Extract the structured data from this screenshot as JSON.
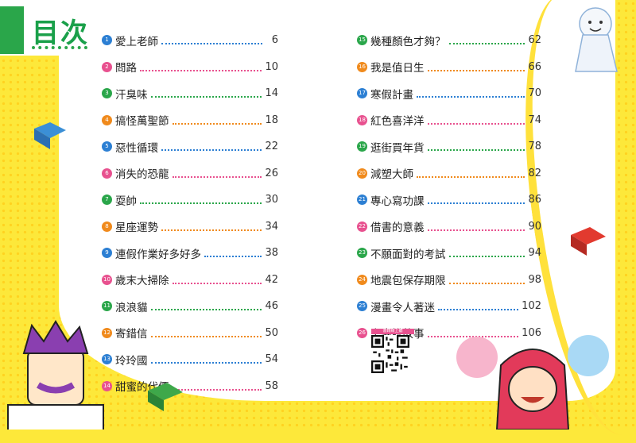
{
  "header": {
    "title": "目次"
  },
  "colors": {
    "title_green": "#1aa04a",
    "background_yellow": "#fde83a"
  },
  "qr_caption": "書籍線上聽",
  "toc": [
    {
      "n": "1",
      "title": "愛上老師",
      "page": "6",
      "color": "#2c7fd3"
    },
    {
      "n": "2",
      "title": "問路",
      "page": "10",
      "color": "#e8518f"
    },
    {
      "n": "3",
      "title": "汗臭味",
      "page": "14",
      "color": "#2aa64a"
    },
    {
      "n": "4",
      "title": "搞怪萬聖節",
      "page": "18",
      "color": "#f08a1c"
    },
    {
      "n": "5",
      "title": "惡性循環",
      "page": "22",
      "color": "#2c7fd3"
    },
    {
      "n": "6",
      "title": "消失的恐龍",
      "page": "26",
      "color": "#e8518f"
    },
    {
      "n": "7",
      "title": "耍帥",
      "page": "30",
      "color": "#2aa64a"
    },
    {
      "n": "8",
      "title": "星座運勢",
      "page": "34",
      "color": "#f08a1c"
    },
    {
      "n": "9",
      "title": "連假作業好多好多",
      "page": "38",
      "color": "#2c7fd3"
    },
    {
      "n": "10",
      "title": "歲末大掃除",
      "page": "42",
      "color": "#e8518f"
    },
    {
      "n": "11",
      "title": "浪浪貓",
      "page": "46",
      "color": "#2aa64a"
    },
    {
      "n": "12",
      "title": "寄錯信",
      "page": "50",
      "color": "#f08a1c"
    },
    {
      "n": "13",
      "title": "玲玲國",
      "page": "54",
      "color": "#2c7fd3"
    },
    {
      "n": "14",
      "title": "甜蜜的代價",
      "page": "58",
      "color": "#e8518f"
    },
    {
      "n": "15",
      "title": "幾種顏色才夠？",
      "page": "62",
      "color": "#2aa64a"
    },
    {
      "n": "16",
      "title": "我是值日生",
      "page": "66",
      "color": "#f08a1c"
    },
    {
      "n": "17",
      "title": "寒假計畫",
      "page": "70",
      "color": "#2c7fd3"
    },
    {
      "n": "18",
      "title": "紅色喜洋洋",
      "page": "74",
      "color": "#e8518f"
    },
    {
      "n": "19",
      "title": "逛街買年貨",
      "page": "78",
      "color": "#2aa64a"
    },
    {
      "n": "20",
      "title": "減塑大師",
      "page": "82",
      "color": "#f08a1c"
    },
    {
      "n": "21",
      "title": "專心寫功課",
      "page": "86",
      "color": "#2c7fd3"
    },
    {
      "n": "22",
      "title": "借書的意義",
      "page": "90",
      "color": "#e8518f"
    },
    {
      "n": "23",
      "title": "不願面對的考試",
      "page": "94",
      "color": "#2aa64a"
    },
    {
      "n": "24",
      "title": "地震包保存期限",
      "page": "98",
      "color": "#f08a1c"
    },
    {
      "n": "25",
      "title": "漫畫令人著迷",
      "page": "102",
      "color": "#2c7fd3"
    },
    {
      "n": "26",
      "title": "上臺說故事",
      "page": "106",
      "color": "#e8518f"
    }
  ],
  "icons": [
    "teru-teru-bozu-icon",
    "flying-book-icon",
    "teacher-character-icon",
    "girl-with-pompoms-icon",
    "qr-code-icon"
  ]
}
